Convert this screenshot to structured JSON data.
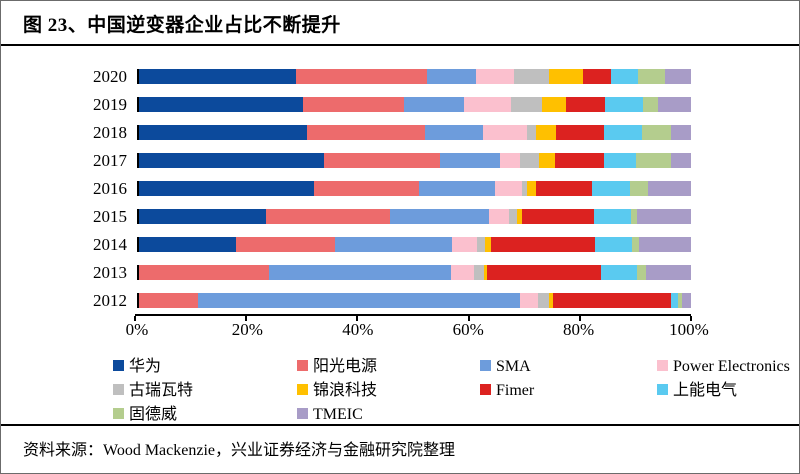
{
  "header": {
    "title": "图 23、中国逆变器企业占比不断提升"
  },
  "footer": {
    "source": "资料来源：Wood Mackenzie，兴业证券经济与金融研究院整理"
  },
  "chart_data": {
    "type": "bar",
    "orientation": "horizontal",
    "stacked": true,
    "unit": "%",
    "title": "中国逆变器企业占比不断提升",
    "categories": [
      "2020",
      "2019",
      "2018",
      "2017",
      "2016",
      "2015",
      "2014",
      "2013",
      "2012"
    ],
    "x_ticks": [
      "0%",
      "20%",
      "40%",
      "60%",
      "80%",
      "100%"
    ],
    "xlim": [
      0,
      100
    ],
    "legend_position": "bottom",
    "grid": false,
    "series": [
      {
        "name": "华为",
        "color": "#0C4A9C",
        "values": [
          28.6,
          29.8,
          30.4,
          33.5,
          31.7,
          22.9,
          17.5,
          0,
          0
        ]
      },
      {
        "name": "阳光电源",
        "color": "#ED6B6C",
        "values": [
          23.7,
          18.2,
          21.3,
          21.1,
          19.0,
          22.5,
          17.9,
          23.6,
          10.6
        ]
      },
      {
        "name": "SMA",
        "color": "#6D9CDC",
        "values": [
          8.9,
          10.9,
          10.6,
          10.8,
          13.8,
          18.0,
          21.1,
          32.8,
          58.3
        ]
      },
      {
        "name": "Power Electronics",
        "color": "#FBC0CE",
        "values": [
          7.0,
          8.5,
          8.0,
          3.7,
          4.9,
          3.6,
          4.5,
          4.2,
          3.2
        ]
      },
      {
        "name": "古瑞瓦特",
        "color": "#BFBFBF",
        "values": [
          6.3,
          5.6,
          1.6,
          3.3,
          0.9,
          1.4,
          1.5,
          1.8,
          2.1
        ]
      },
      {
        "name": "锦浪科技",
        "color": "#FFC000",
        "values": [
          6.2,
          4.3,
          3.6,
          2.9,
          1.6,
          1.0,
          1.1,
          0.5,
          0.6
        ]
      },
      {
        "name": "Fimer",
        "color": "#DC2220",
        "values": [
          5.1,
          7.2,
          8.6,
          8.9,
          10.1,
          13.0,
          18.7,
          20.7,
          21.4
        ]
      },
      {
        "name": "上能电气",
        "color": "#5ACAF0",
        "values": [
          4.8,
          6.9,
          6.9,
          5.9,
          6.8,
          6.6,
          6.6,
          6.5,
          1.2
        ]
      },
      {
        "name": "固德威",
        "color": "#B4CD8E",
        "values": [
          5.0,
          2.7,
          5.2,
          6.3,
          3.4,
          1.2,
          1.3,
          1.6,
          0.7
        ]
      },
      {
        "name": "TMEIC",
        "color": "#A89CC7",
        "values": [
          4.7,
          5.9,
          3.7,
          3.6,
          7.7,
          9.7,
          9.4,
          8.2,
          1.7
        ]
      }
    ]
  }
}
